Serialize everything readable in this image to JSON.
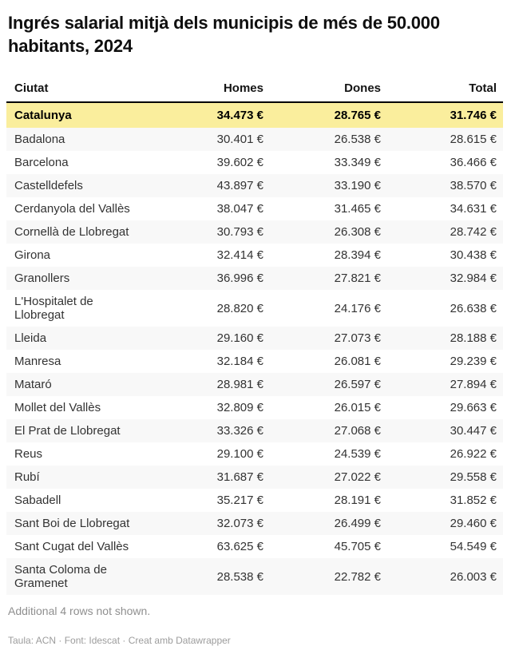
{
  "title": "Ingrés salarial mitjà dels municipis de més de 50.000 habitants, 2024",
  "footer": {
    "note": "Additional 4 rows not shown.",
    "source": "Taula: ACN · Font: Idescat · Creat amb Datawrapper"
  },
  "colors": {
    "highlight_row_bg": "#faee9d",
    "stripe_row_bg": "#f8f8f8",
    "header_rule": "#000000",
    "muted_text": "#8f8f8f"
  },
  "chart_data": {
    "type": "table",
    "title": "Ingrés salarial mitjà dels municipis de més de 50.000 habitants, 2024",
    "columns": [
      "Ciutat",
      "Homes",
      "Dones",
      "Total"
    ],
    "rows": [
      {
        "ciutat": "Catalunya",
        "homes": "34.473 €",
        "dones": "28.765 €",
        "total": "31.746 €",
        "highlight": true
      },
      {
        "ciutat": "Badalona",
        "homes": "30.401 €",
        "dones": "26.538 €",
        "total": "28.615 €"
      },
      {
        "ciutat": "Barcelona",
        "homes": "39.602 €",
        "dones": "33.349 €",
        "total": "36.466 €"
      },
      {
        "ciutat": "Castelldefels",
        "homes": "43.897 €",
        "dones": "33.190 €",
        "total": "38.570 €"
      },
      {
        "ciutat": "Cerdanyola del Vallès",
        "homes": "38.047 €",
        "dones": "31.465 €",
        "total": "34.631 €"
      },
      {
        "ciutat": "Cornellà de Llobregat",
        "homes": "30.793 €",
        "dones": "26.308 €",
        "total": "28.742 €"
      },
      {
        "ciutat": "Girona",
        "homes": "32.414 €",
        "dones": "28.394 €",
        "total": "30.438 €"
      },
      {
        "ciutat": "Granollers",
        "homes": "36.996 €",
        "dones": "27.821 €",
        "total": "32.984 €"
      },
      {
        "ciutat": "L'Hospitalet de Llobregat",
        "homes": "28.820 €",
        "dones": "24.176 €",
        "total": "26.638 €"
      },
      {
        "ciutat": "Lleida",
        "homes": "29.160 €",
        "dones": "27.073 €",
        "total": "28.188 €"
      },
      {
        "ciutat": "Manresa",
        "homes": "32.184 €",
        "dones": "26.081 €",
        "total": "29.239 €"
      },
      {
        "ciutat": "Mataró",
        "homes": "28.981 €",
        "dones": "26.597 €",
        "total": "27.894 €"
      },
      {
        "ciutat": "Mollet del Vallès",
        "homes": "32.809 €",
        "dones": "26.015 €",
        "total": "29.663 €"
      },
      {
        "ciutat": "El Prat de Llobregat",
        "homes": "33.326 €",
        "dones": "27.068 €",
        "total": "30.447 €"
      },
      {
        "ciutat": "Reus",
        "homes": "29.100 €",
        "dones": "24.539 €",
        "total": "26.922 €"
      },
      {
        "ciutat": "Rubí",
        "homes": "31.687 €",
        "dones": "27.022 €",
        "total": "29.558 €"
      },
      {
        "ciutat": "Sabadell",
        "homes": "35.217 €",
        "dones": "28.191 €",
        "total": "31.852 €"
      },
      {
        "ciutat": "Sant Boi de Llobregat",
        "homes": "32.073 €",
        "dones": "26.499 €",
        "total": "29.460 €"
      },
      {
        "ciutat": "Sant Cugat del Vallès",
        "homes": "63.625 €",
        "dones": "45.705 €",
        "total": "54.549 €"
      },
      {
        "ciutat": "Santa Coloma de Gramenet",
        "homes": "28.538 €",
        "dones": "22.782 €",
        "total": "26.003 €"
      }
    ]
  }
}
